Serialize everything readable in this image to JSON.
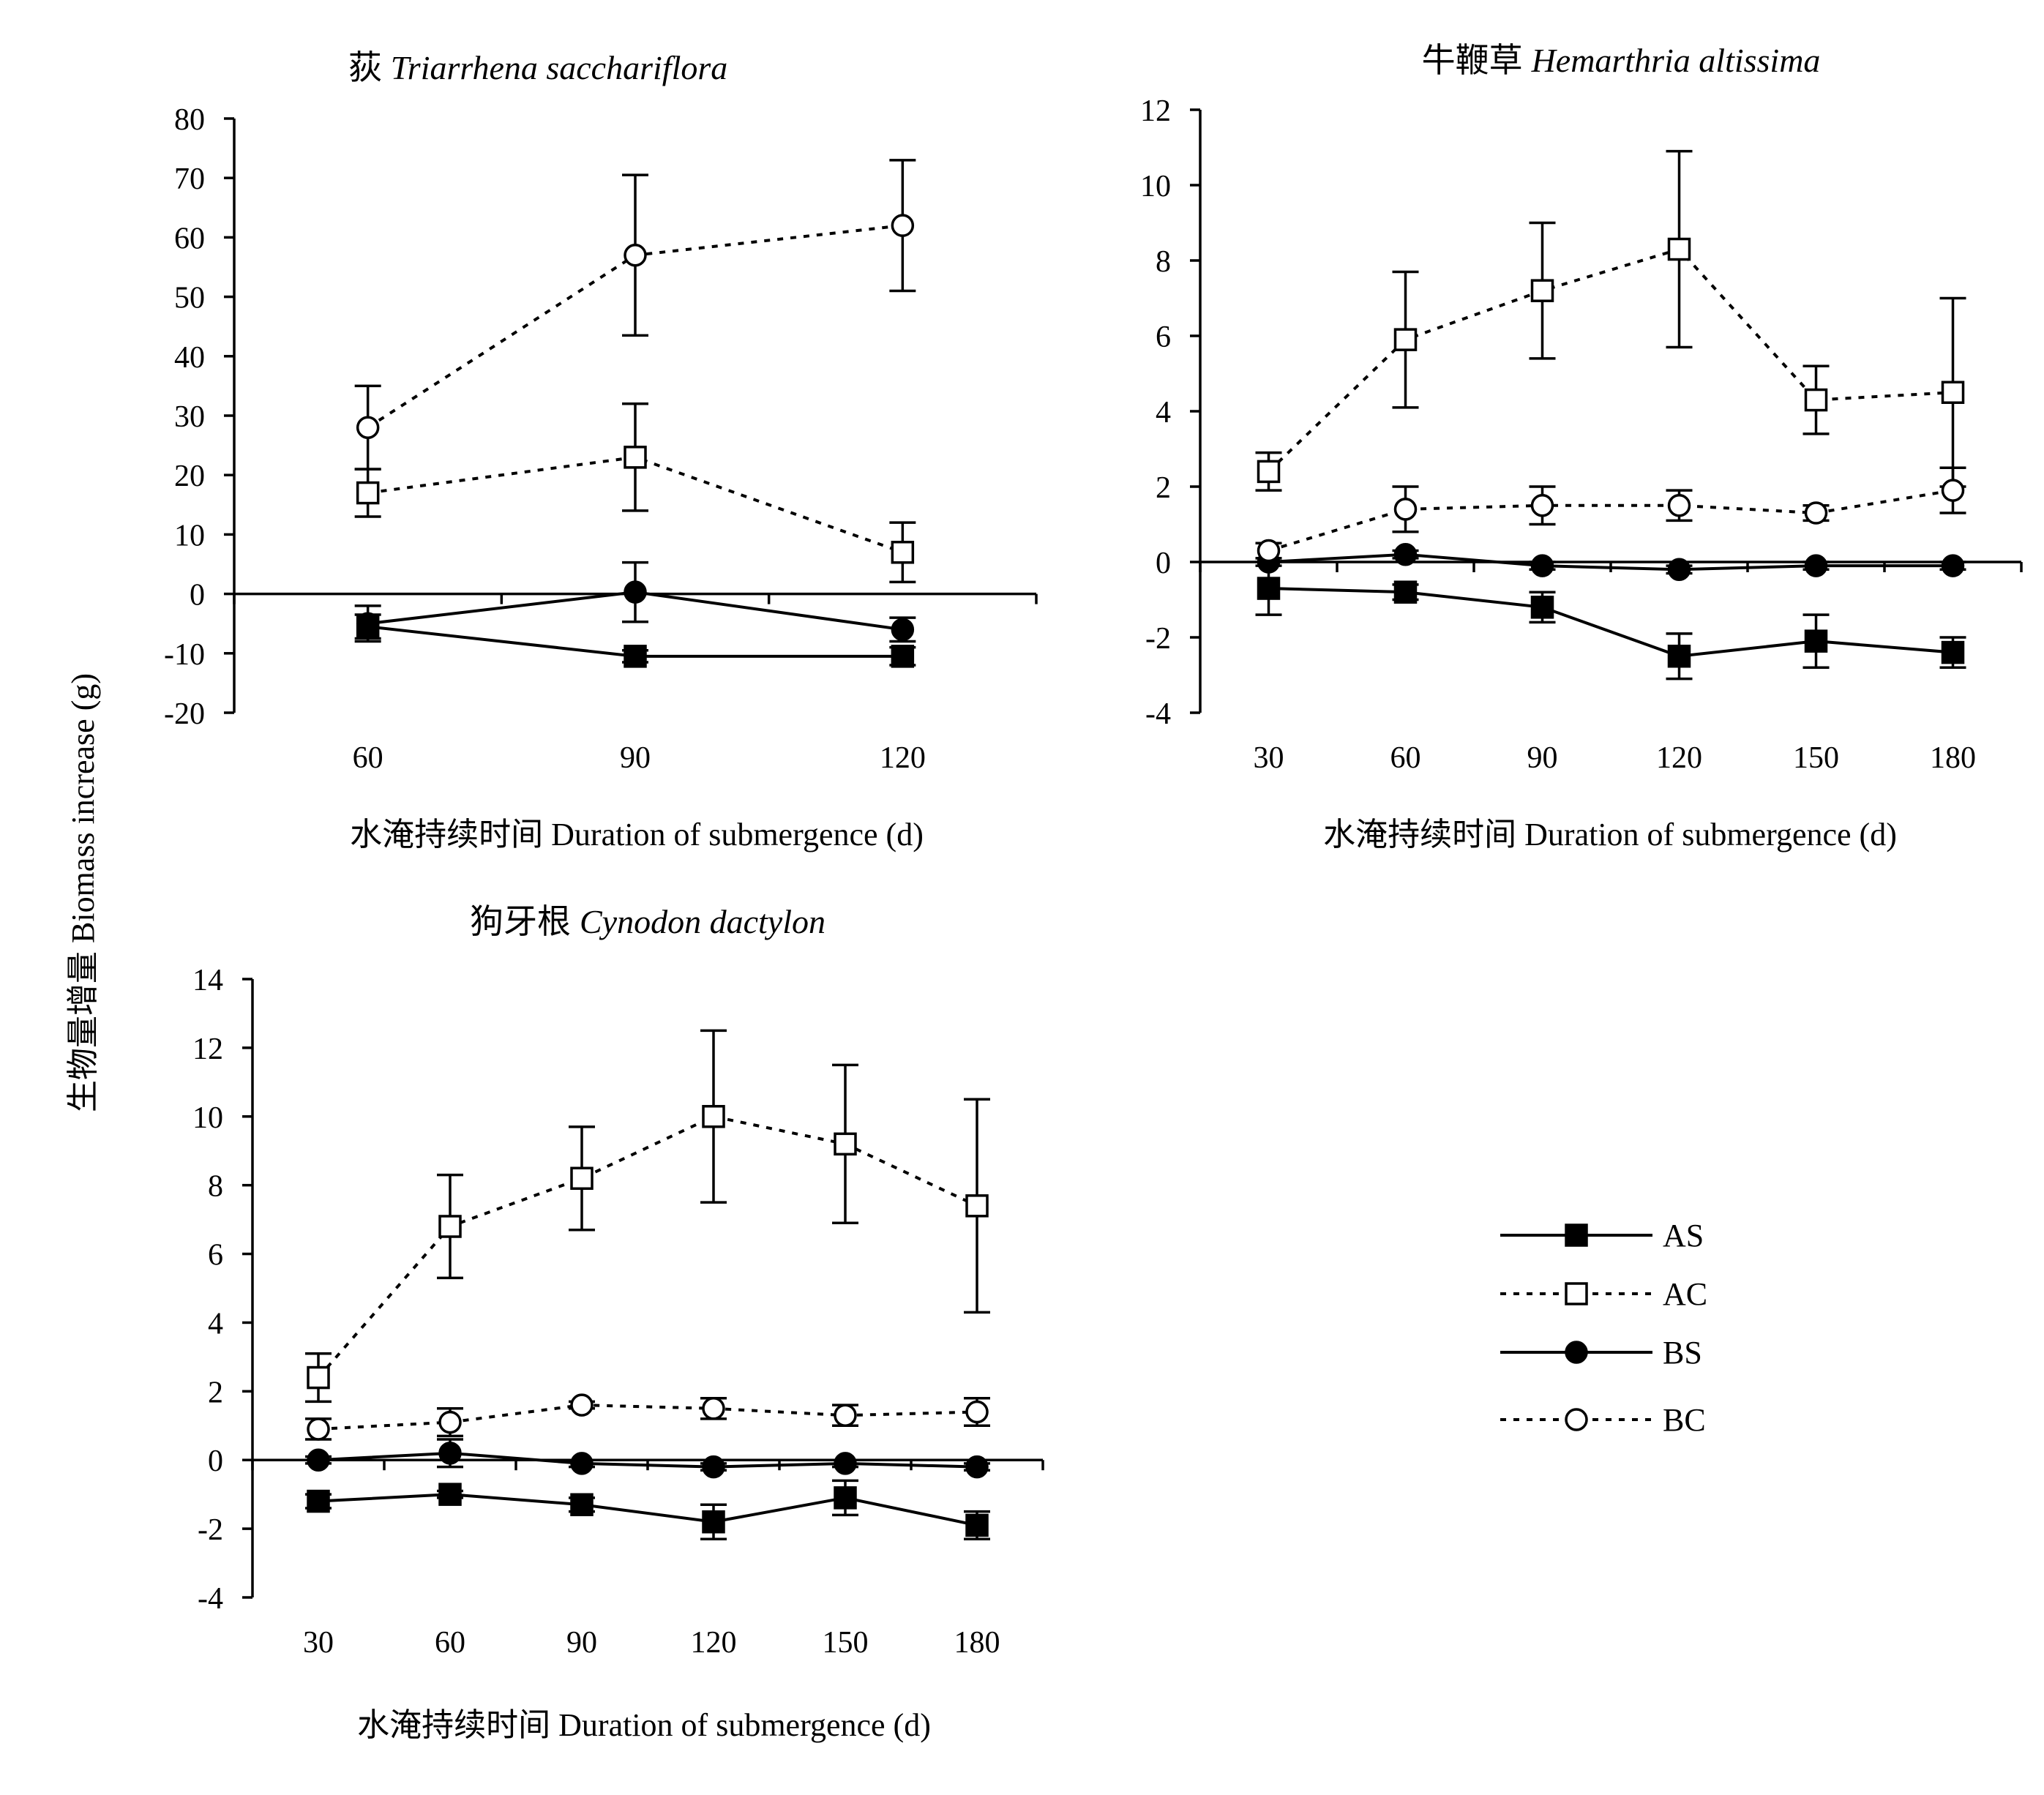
{
  "figure": {
    "ylabel": "生物量增量 Biomass increase (g)"
  },
  "legend": {
    "entries": [
      {
        "key": "AS",
        "label": "AS",
        "marker": "square",
        "fill": "filled",
        "line": "solid"
      },
      {
        "key": "AC",
        "label": "AC",
        "marker": "square",
        "fill": "open",
        "line": "dashed"
      },
      {
        "key": "BS",
        "label": "BS",
        "marker": "circle",
        "fill": "filled",
        "line": "solid"
      },
      {
        "key": "BC",
        "label": "BC",
        "marker": "circle",
        "fill": "open",
        "line": "dashed"
      }
    ]
  },
  "colors": {
    "ink": "#000000",
    "background": "#ffffff"
  },
  "chart_data": [
    {
      "type": "line",
      "title_cn": "荻",
      "title_latin": "Triarrhena sacchariflora",
      "xlabel": "水淹持续时间 Duration of submergence (d)",
      "x": [
        60,
        90,
        120
      ],
      "ylim": [
        -20,
        80
      ],
      "yticks": [
        -20,
        -10,
        0,
        10,
        20,
        30,
        40,
        50,
        60,
        70,
        80
      ],
      "series": [
        {
          "name": "AS",
          "values": [
            -5.5,
            -10.5,
            -10.5
          ],
          "errors": [
            2.0,
            1.0,
            1.5
          ]
        },
        {
          "name": "AC",
          "values": [
            17,
            23,
            7
          ],
          "errors": [
            4,
            9,
            5
          ]
        },
        {
          "name": "BS",
          "values": [
            -5,
            0.3,
            -6
          ],
          "errors": [
            3,
            5,
            2
          ]
        },
        {
          "name": "BC",
          "values": [
            28,
            57,
            62
          ],
          "errors": [
            7,
            13.5,
            11
          ]
        }
      ]
    },
    {
      "type": "line",
      "title_cn": "牛鞭草",
      "title_latin": "Hemarthria altissima",
      "xlabel": "水淹持续时间 Duration of submergence (d)",
      "x": [
        30,
        60,
        90,
        120,
        150,
        180
      ],
      "ylim": [
        -4,
        12
      ],
      "yticks": [
        -4,
        -2,
        0,
        2,
        4,
        6,
        8,
        10,
        12
      ],
      "series": [
        {
          "name": "AS",
          "values": [
            -0.7,
            -0.8,
            -1.2,
            -2.5,
            -2.1,
            -2.4
          ],
          "errors": [
            0.7,
            0.2,
            0.4,
            0.6,
            0.7,
            0.4
          ]
        },
        {
          "name": "AC",
          "values": [
            2.4,
            5.9,
            7.2,
            8.3,
            4.3,
            4.5
          ],
          "errors": [
            0.5,
            1.8,
            1.8,
            2.6,
            0.9,
            2.5
          ]
        },
        {
          "name": "BS",
          "values": [
            0,
            0.2,
            -0.1,
            -0.2,
            -0.1,
            -0.1
          ],
          "errors": [
            0.1,
            0.1,
            0.1,
            0.1,
            0.1,
            0.1
          ]
        },
        {
          "name": "BC",
          "values": [
            0.3,
            1.4,
            1.5,
            1.5,
            1.3,
            1.9
          ],
          "errors": [
            0.2,
            0.6,
            0.5,
            0.4,
            0.2,
            0.6
          ]
        }
      ]
    },
    {
      "type": "line",
      "title_cn": "狗牙根",
      "title_latin": "Cynodon dactylon",
      "xlabel": "水淹持续时间 Duration of submergence (d)",
      "x": [
        30,
        60,
        90,
        120,
        150,
        180
      ],
      "ylim": [
        -4,
        14
      ],
      "yticks": [
        -4,
        -2,
        0,
        2,
        4,
        6,
        8,
        10,
        12,
        14
      ],
      "series": [
        {
          "name": "AS",
          "values": [
            -1.2,
            -1.0,
            -1.3,
            -1.8,
            -1.1,
            -1.9
          ],
          "errors": [
            0.2,
            0.1,
            0.2,
            0.5,
            0.5,
            0.4
          ]
        },
        {
          "name": "AC",
          "values": [
            2.4,
            6.8,
            8.2,
            10.0,
            9.2,
            7.4
          ],
          "errors": [
            0.7,
            1.5,
            1.5,
            2.5,
            2.3,
            3.1
          ]
        },
        {
          "name": "BS",
          "values": [
            0.0,
            0.2,
            -0.1,
            -0.2,
            -0.1,
            -0.2
          ],
          "errors": [
            0.1,
            0.4,
            0.1,
            0.1,
            0.1,
            0.1
          ]
        },
        {
          "name": "BC",
          "values": [
            0.9,
            1.1,
            1.6,
            1.5,
            1.3,
            1.4
          ],
          "errors": [
            0.3,
            0.4,
            0.1,
            0.3,
            0.3,
            0.4
          ]
        }
      ]
    }
  ]
}
